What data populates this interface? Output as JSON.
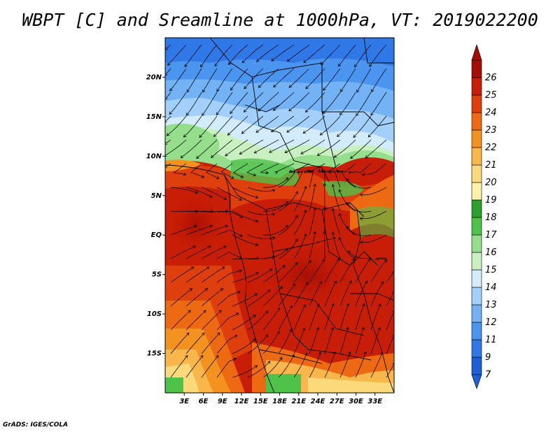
{
  "title": "WBPT [C] and Sreamline at 1000hPa, VT: 2019022200",
  "credit": "GrADS: IGES/COLA",
  "map": {
    "lon_range": [
      0,
      36
    ],
    "lat_range": [
      -20,
      25
    ],
    "lon_ticks": [
      {
        "value": 3,
        "label": "3E"
      },
      {
        "value": 6,
        "label": "6E"
      },
      {
        "value": 9,
        "label": "9E"
      },
      {
        "value": 12,
        "label": "12E"
      },
      {
        "value": 15,
        "label": "15E"
      },
      {
        "value": 18,
        "label": "18E"
      },
      {
        "value": 21,
        "label": "21E"
      },
      {
        "value": 24,
        "label": "24E"
      },
      {
        "value": 27,
        "label": "27E"
      },
      {
        "value": 30,
        "label": "30E"
      },
      {
        "value": 33,
        "label": "33E"
      }
    ],
    "lat_ticks": [
      {
        "value": 20,
        "label": "20N"
      },
      {
        "value": 15,
        "label": "15N"
      },
      {
        "value": 10,
        "label": "10N"
      },
      {
        "value": 5,
        "label": "5N"
      },
      {
        "value": 0,
        "label": "EQ"
      },
      {
        "value": -5,
        "label": "5S"
      },
      {
        "value": -10,
        "label": "10S"
      },
      {
        "value": -15,
        "label": "15S"
      }
    ]
  },
  "colorbar": {
    "labels": [
      "7",
      "9",
      "11",
      "12",
      "13",
      "14",
      "15",
      "16",
      "17",
      "18",
      "19",
      "20",
      "21",
      "22",
      "23",
      "24",
      "25",
      "26"
    ],
    "colors": [
      "#1f5fd6",
      "#2e78e8",
      "#4a95f0",
      "#73b2f5",
      "#a3d0fa",
      "#d3ecfc",
      "#c8f0c0",
      "#95de8c",
      "#4fc24a",
      "#2aa12a",
      "#fff2a8",
      "#fcd97a",
      "#f9b64a",
      "#f4921f",
      "#ed6a12",
      "#df3f0c",
      "#c81d06",
      "#a50d00"
    ]
  }
}
